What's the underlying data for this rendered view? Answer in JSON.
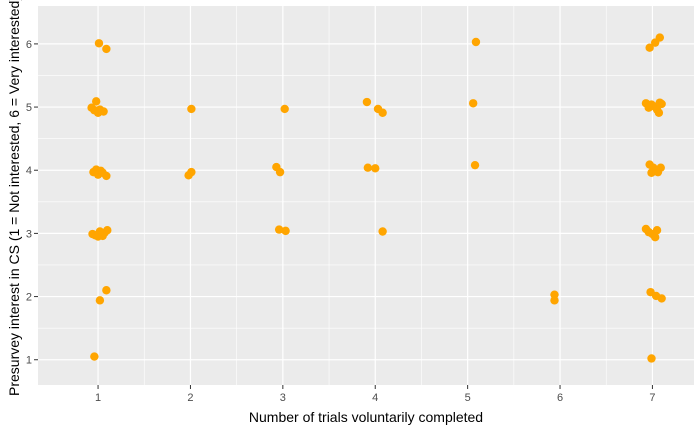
{
  "chart_data": {
    "type": "scatter",
    "xlabel": "Number of trials voluntarily completed",
    "ylabel": "Presurvey interest in CS (1 = Not interested, 6 = Very interested)",
    "xlim": [
      0.35,
      7.45
    ],
    "ylim": [
      0.6,
      6.6
    ],
    "x_ticks": [
      1,
      2,
      3,
      4,
      5,
      6,
      7
    ],
    "y_ticks": [
      1,
      2,
      3,
      4,
      5,
      6
    ],
    "grid": true,
    "colors": {
      "panel": "#ebebeb",
      "grid": "#ffffff",
      "point": "#ffa500"
    },
    "points": [
      {
        "x": 1.01,
        "y": 6.01
      },
      {
        "x": 1.09,
        "y": 5.92
      },
      {
        "x": 0.93,
        "y": 4.99
      },
      {
        "x": 0.98,
        "y": 5.09
      },
      {
        "x": 1.02,
        "y": 4.96
      },
      {
        "x": 1.06,
        "y": 4.93
      },
      {
        "x": 0.96,
        "y": 4.95
      },
      {
        "x": 1.0,
        "y": 4.91
      },
      {
        "x": 0.95,
        "y": 3.97
      },
      {
        "x": 0.98,
        "y": 4.01
      },
      {
        "x": 1.0,
        "y": 3.93
      },
      {
        "x": 1.03,
        "y": 3.99
      },
      {
        "x": 1.05,
        "y": 3.96
      },
      {
        "x": 1.09,
        "y": 3.91
      },
      {
        "x": 0.94,
        "y": 2.99
      },
      {
        "x": 0.97,
        "y": 2.97
      },
      {
        "x": 1.0,
        "y": 2.95
      },
      {
        "x": 1.02,
        "y": 3.03
      },
      {
        "x": 1.05,
        "y": 2.96
      },
      {
        "x": 1.07,
        "y": 3.01
      },
      {
        "x": 1.1,
        "y": 3.05
      },
      {
        "x": 1.09,
        "y": 2.1
      },
      {
        "x": 1.02,
        "y": 1.94
      },
      {
        "x": 0.96,
        "y": 1.05
      },
      {
        "x": 2.01,
        "y": 4.97
      },
      {
        "x": 1.98,
        "y": 3.92
      },
      {
        "x": 2.01,
        "y": 3.97
      },
      {
        "x": 3.02,
        "y": 4.97
      },
      {
        "x": 2.93,
        "y": 4.05
      },
      {
        "x": 2.97,
        "y": 3.97
      },
      {
        "x": 2.96,
        "y": 3.06
      },
      {
        "x": 3.03,
        "y": 3.04
      },
      {
        "x": 3.91,
        "y": 5.08
      },
      {
        "x": 4.03,
        "y": 4.97
      },
      {
        "x": 4.08,
        "y": 4.91
      },
      {
        "x": 3.92,
        "y": 4.04
      },
      {
        "x": 4.0,
        "y": 4.03
      },
      {
        "x": 4.08,
        "y": 3.03
      },
      {
        "x": 5.09,
        "y": 6.03
      },
      {
        "x": 5.06,
        "y": 5.06
      },
      {
        "x": 5.08,
        "y": 4.08
      },
      {
        "x": 5.94,
        "y": 2.03
      },
      {
        "x": 5.94,
        "y": 1.94
      },
      {
        "x": 6.97,
        "y": 5.94
      },
      {
        "x": 7.03,
        "y": 6.02
      },
      {
        "x": 7.08,
        "y": 6.1
      },
      {
        "x": 6.93,
        "y": 5.06
      },
      {
        "x": 6.96,
        "y": 4.99
      },
      {
        "x": 6.99,
        "y": 5.04
      },
      {
        "x": 7.02,
        "y": 5.01
      },
      {
        "x": 7.05,
        "y": 4.96
      },
      {
        "x": 7.08,
        "y": 5.07
      },
      {
        "x": 7.1,
        "y": 5.05
      },
      {
        "x": 7.07,
        "y": 4.91
      },
      {
        "x": 6.97,
        "y": 4.09
      },
      {
        "x": 7.01,
        "y": 4.04
      },
      {
        "x": 7.04,
        "y": 3.99
      },
      {
        "x": 6.99,
        "y": 3.96
      },
      {
        "x": 7.09,
        "y": 4.04
      },
      {
        "x": 7.06,
        "y": 3.97
      },
      {
        "x": 6.93,
        "y": 3.07
      },
      {
        "x": 6.96,
        "y": 3.02
      },
      {
        "x": 7.0,
        "y": 2.99
      },
      {
        "x": 7.03,
        "y": 2.94
      },
      {
        "x": 7.05,
        "y": 3.05
      },
      {
        "x": 6.98,
        "y": 2.07
      },
      {
        "x": 7.04,
        "y": 2.01
      },
      {
        "x": 7.1,
        "y": 1.97
      },
      {
        "x": 6.99,
        "y": 1.02
      }
    ]
  }
}
